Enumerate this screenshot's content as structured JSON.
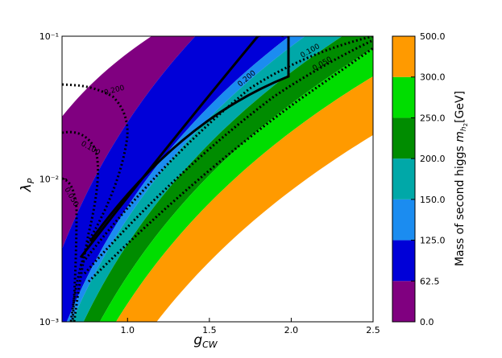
{
  "chart_data": {
    "type": "contourf",
    "x_label": "g",
    "x_label_sub": "CW",
    "y_label": "λ",
    "y_label_sub": "P",
    "xlim": [
      0.6,
      2.5
    ],
    "xticks": [
      {
        "value": 1,
        "label": "1.0"
      },
      {
        "value": 1.5,
        "label": "1.5"
      },
      {
        "value": 2,
        "label": "2.0"
      },
      {
        "value": 2.5,
        "label": "2.5"
      }
    ],
    "ylim": [
      0.001,
      0.1
    ],
    "ylog": true,
    "yticks": [
      {
        "value": 0.001,
        "label": "10⁻³"
      },
      {
        "value": 0.01,
        "label": "10⁻²"
      },
      {
        "value": 0.1,
        "label": "10⁻¹"
      }
    ],
    "colorbar": {
      "label": "Mass of second higgs",
      "symbol": "m",
      "sub": "h",
      "subsub": "2",
      "unit": "[GeV]",
      "ticks": [
        {
          "value": 0,
          "label": "0.0"
        },
        62.5,
        125,
        150,
        200,
        250,
        300,
        500
      ],
      "tick_labels": [
        "0.0",
        "62.5",
        "125.0",
        "150.0",
        "200.0",
        "250.0",
        "300.0",
        "500.0"
      ],
      "colors": [
        "#800080",
        "#0000d8",
        "#1b8cf0",
        "#00a8a8",
        "#008c00",
        "#00dd00",
        "#ff9a00"
      ]
    },
    "contour_labels": [
      "0.200",
      "0.100",
      "0.050",
      "0.200",
      "0.100",
      "0.050"
    ]
  }
}
